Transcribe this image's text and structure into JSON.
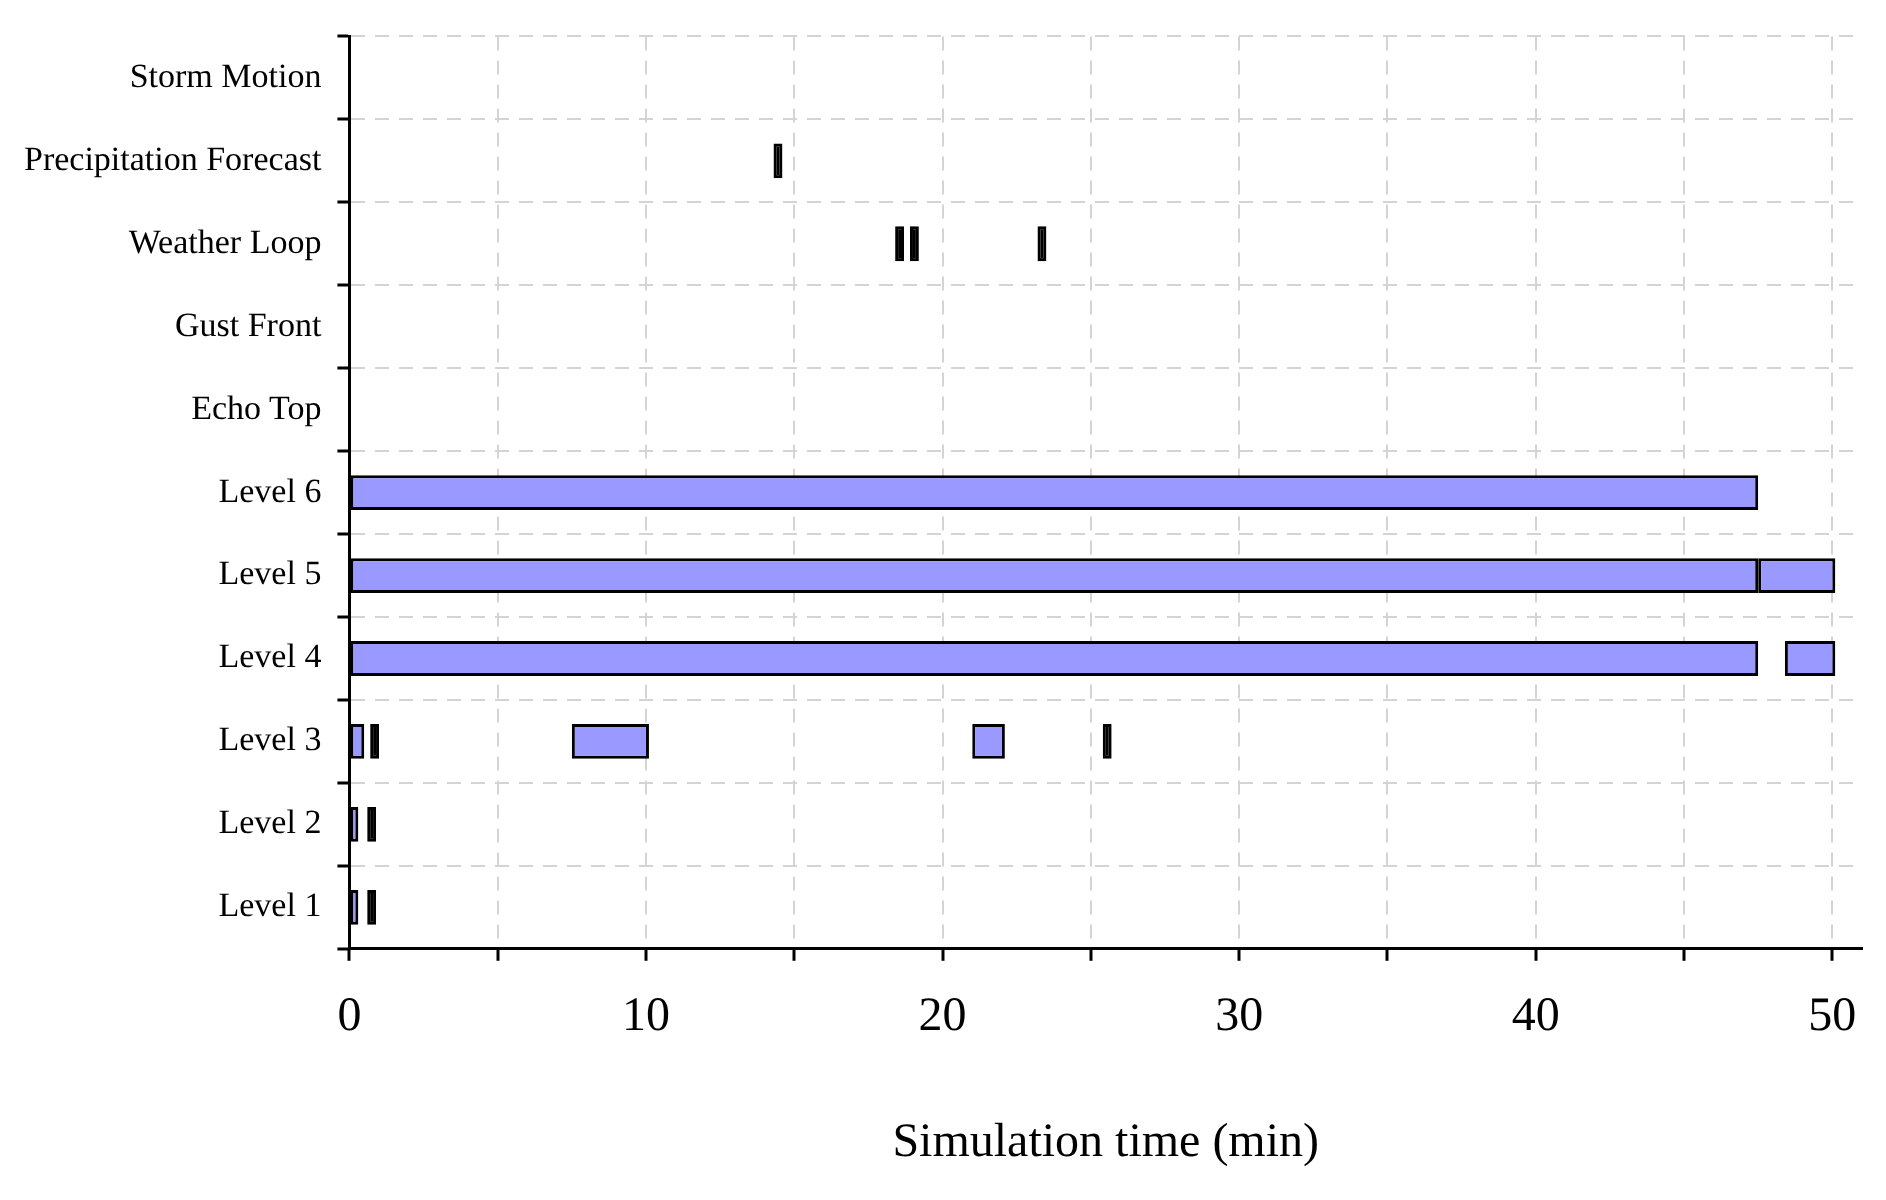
{
  "chart_data": {
    "type": "bar",
    "orientation": "horizontal",
    "xlabel": "Simulation time (min)",
    "categories": [
      "Storm Motion",
      "Precipitation Forecast",
      "Weather Loop",
      "Gust Front",
      "Echo Top",
      "Level 6",
      "Level 5",
      "Level 4",
      "Level 3",
      "Level 2",
      "Level 1"
    ],
    "series": [
      {
        "color": "#9999ff",
        "base": [
          null,
          null,
          null,
          null,
          null,
          0,
          0,
          0,
          0,
          0,
          0
        ],
        "values": [
          null,
          null,
          null,
          null,
          null,
          47.5,
          47.5,
          47.5,
          0.5,
          0.3,
          0.3
        ]
      },
      {
        "color": "#9999ff",
        "base": [
          null,
          null,
          null,
          null,
          null,
          null,
          47.5,
          48.4,
          7.5,
          null,
          null
        ],
        "values": [
          null,
          null,
          null,
          null,
          null,
          null,
          2.6,
          1.7,
          2.6,
          null,
          null
        ]
      },
      {
        "color": "#9999ff",
        "base": [
          null,
          null,
          null,
          null,
          null,
          null,
          null,
          null,
          21,
          null,
          null
        ],
        "values": [
          null,
          null,
          null,
          null,
          null,
          null,
          null,
          null,
          1.1,
          null,
          null
        ]
      },
      {
        "color": "#000000",
        "base": [
          null,
          14.3,
          18.4,
          null,
          null,
          null,
          null,
          null,
          0.7,
          0.6,
          0.6
        ],
        "values": [
          null,
          0.3,
          0.3,
          null,
          null,
          null,
          null,
          null,
          0.3,
          0.3,
          0.3
        ]
      },
      {
        "color": "#000000",
        "base": [
          null,
          null,
          18.9,
          null,
          null,
          null,
          null,
          null,
          25.4,
          null,
          null
        ],
        "values": [
          null,
          null,
          0.3,
          null,
          null,
          null,
          null,
          null,
          0.3,
          null,
          null
        ]
      },
      {
        "color": "#000000",
        "base": [
          null,
          null,
          23.2,
          null,
          null,
          null,
          null,
          null,
          null,
          null,
          null
        ],
        "values": [
          null,
          null,
          0.3,
          null,
          null,
          null,
          null,
          null,
          null,
          null,
          null
        ]
      }
    ],
    "xlim": [
      0,
      51
    ],
    "xticks": [
      0,
      {
        "value": 5,
        "label": null
      },
      10,
      {
        "value": 15,
        "label": null
      },
      20,
      {
        "value": 25,
        "label": null
      },
      30,
      {
        "value": 35,
        "label": null
      },
      40,
      {
        "value": 45,
        "label": null
      },
      50
    ],
    "grid": true
  }
}
